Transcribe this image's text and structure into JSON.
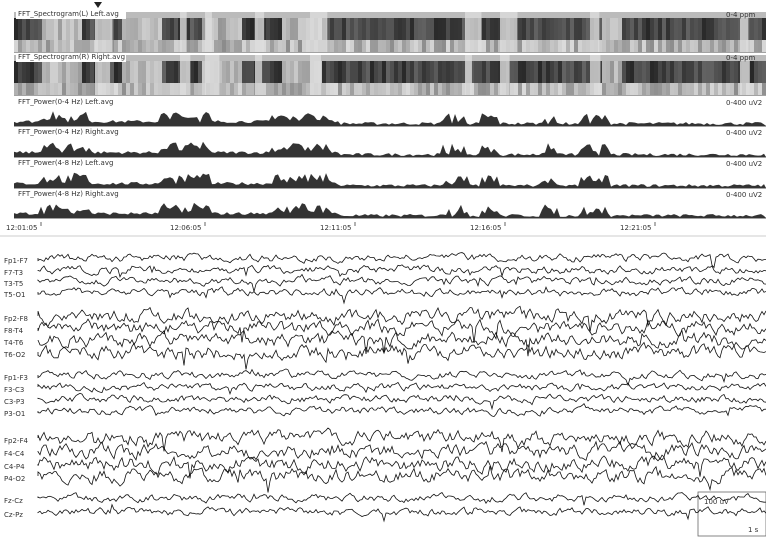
{
  "trend_panels": [
    {
      "label": "FFT_Spectrogram(L) Left.avg",
      "scale": "0-4 ppm",
      "kind": "spectrogram"
    },
    {
      "label": "FFT_Spectrogram(R) Right.avg",
      "scale": "0-4 ppm",
      "kind": "spectrogram"
    },
    {
      "label": "FFT_Power(0-4 Hz) Left.avg",
      "scale": "0-400 uV2",
      "kind": "power"
    },
    {
      "label": "FFT_Power(0-4 Hz) Right.avg",
      "scale": "0-400 uV2",
      "kind": "power"
    },
    {
      "label": "FFT_Power(4-8 Hz) Left.avg",
      "scale": "0-400 uV2",
      "kind": "power"
    },
    {
      "label": "FFT_Power(4-8 Hz) Right.avg",
      "scale": "0-400 uV2",
      "kind": "power"
    }
  ],
  "time_axis": [
    "12:01:05",
    "12:06:05",
    "12:11:05",
    "12:16:05",
    "12:21:05"
  ],
  "channels": [
    [
      "Fp1-F7",
      "F7-T3",
      "T3-T5",
      "T5-O1"
    ],
    [
      "Fp2-F8",
      "F8-T4",
      "T4-T6",
      "T6-O2"
    ],
    [
      "Fp1-F3",
      "F3-C3",
      "C3-P3",
      "P3-O1"
    ],
    [
      "Fp2-F4",
      "F4-C4",
      "C4-P4",
      "P4-O2"
    ],
    [
      "Fz-Cz",
      "Cz-Pz"
    ]
  ],
  "scale_box": {
    "amplitude": "100 uV",
    "time": "1 s"
  }
}
